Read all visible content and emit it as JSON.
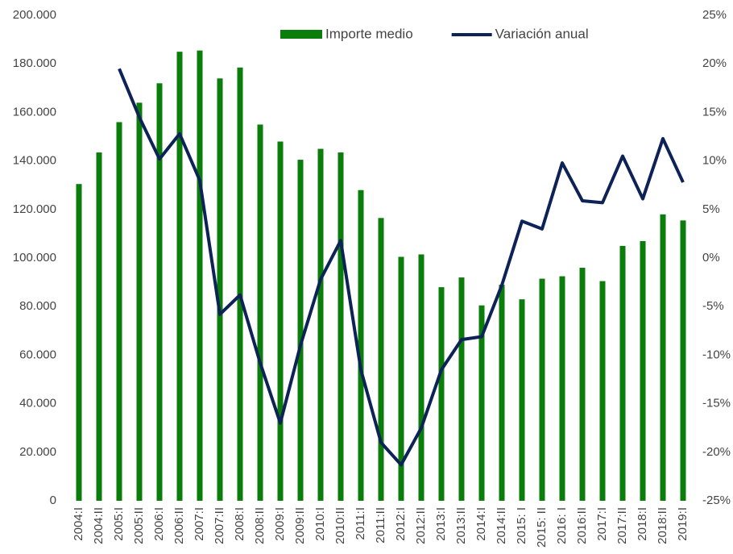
{
  "chart_data": {
    "type": "bar-line",
    "categories": [
      "2004:I",
      "2004:II",
      "2005:I",
      "2005:II",
      "2006:I",
      "2006:II",
      "2007:I",
      "2007:II",
      "2008:I",
      "2008:II",
      "2009:I",
      "2009:II",
      "2010:I",
      "2010:II",
      "2011:I",
      "2011:II",
      "2012:I",
      "2012:II",
      "2013:I",
      "2013:II",
      "2014:I",
      "2014:II",
      "2015: I",
      "2015: II",
      "2016: I",
      "2016:II",
      "2017:I",
      "2017:II",
      "2018:I",
      "2018:II",
      "2019:I"
    ],
    "series": [
      {
        "name": "Importe medio",
        "type": "bar",
        "color": "#0a7d0a",
        "values": [
          130500,
          143500,
          156000,
          164000,
          172000,
          185000,
          185500,
          174000,
          178500,
          155000,
          148000,
          140500,
          145000,
          143500,
          128000,
          116500,
          100500,
          101500,
          88000,
          92000,
          80500,
          89000,
          83000,
          91500,
          92500,
          96000,
          90500,
          105000,
          107000,
          118000,
          115500
        ]
      },
      {
        "name": "Variación anual",
        "type": "line",
        "axis": "y2",
        "color": "#0d2257",
        "values": [
          null,
          null,
          19.5,
          14.5,
          10.2,
          12.8,
          8,
          -5.8,
          -3.8,
          -10.8,
          -17,
          -9,
          -2.2,
          1.8,
          -11.5,
          -19,
          -21.3,
          -17.5,
          -11.5,
          -8.4,
          -8.1,
          -2.8,
          3.8,
          3,
          9.8,
          5.9,
          5.7,
          10.5,
          6.1,
          12.3,
          7.8
        ]
      }
    ],
    "ylim": [
      0,
      200000
    ],
    "yticks": [
      {
        "value": 0,
        "label": "0"
      },
      {
        "value": 20000,
        "label": "20.000"
      },
      {
        "value": 40000,
        "label": "40.000"
      },
      {
        "value": 60000,
        "label": "60.000"
      },
      {
        "value": 80000,
        "label": "80.000"
      },
      {
        "value": 100000,
        "label": "100.000"
      },
      {
        "value": 120000,
        "label": "120.000"
      },
      {
        "value": 140000,
        "label": "140.000"
      },
      {
        "value": 160000,
        "label": "160.000"
      },
      {
        "value": 180000,
        "label": "180.000"
      },
      {
        "value": 200000,
        "label": "200.000"
      }
    ],
    "y2lim": [
      -25,
      25
    ],
    "y2ticks": [
      {
        "value": -25,
        "label": "-25%"
      },
      {
        "value": -20,
        "label": "-20%"
      },
      {
        "value": -15,
        "label": "-15%"
      },
      {
        "value": -10,
        "label": "-10%"
      },
      {
        "value": -5,
        "label": "-5%"
      },
      {
        "value": 0,
        "label": "0%"
      },
      {
        "value": 5,
        "label": "5%"
      },
      {
        "value": 10,
        "label": "10%"
      },
      {
        "value": 15,
        "label": "15%"
      },
      {
        "value": 20,
        "label": "20%"
      },
      {
        "value": 25,
        "label": "25%"
      }
    ],
    "legend": "top"
  }
}
